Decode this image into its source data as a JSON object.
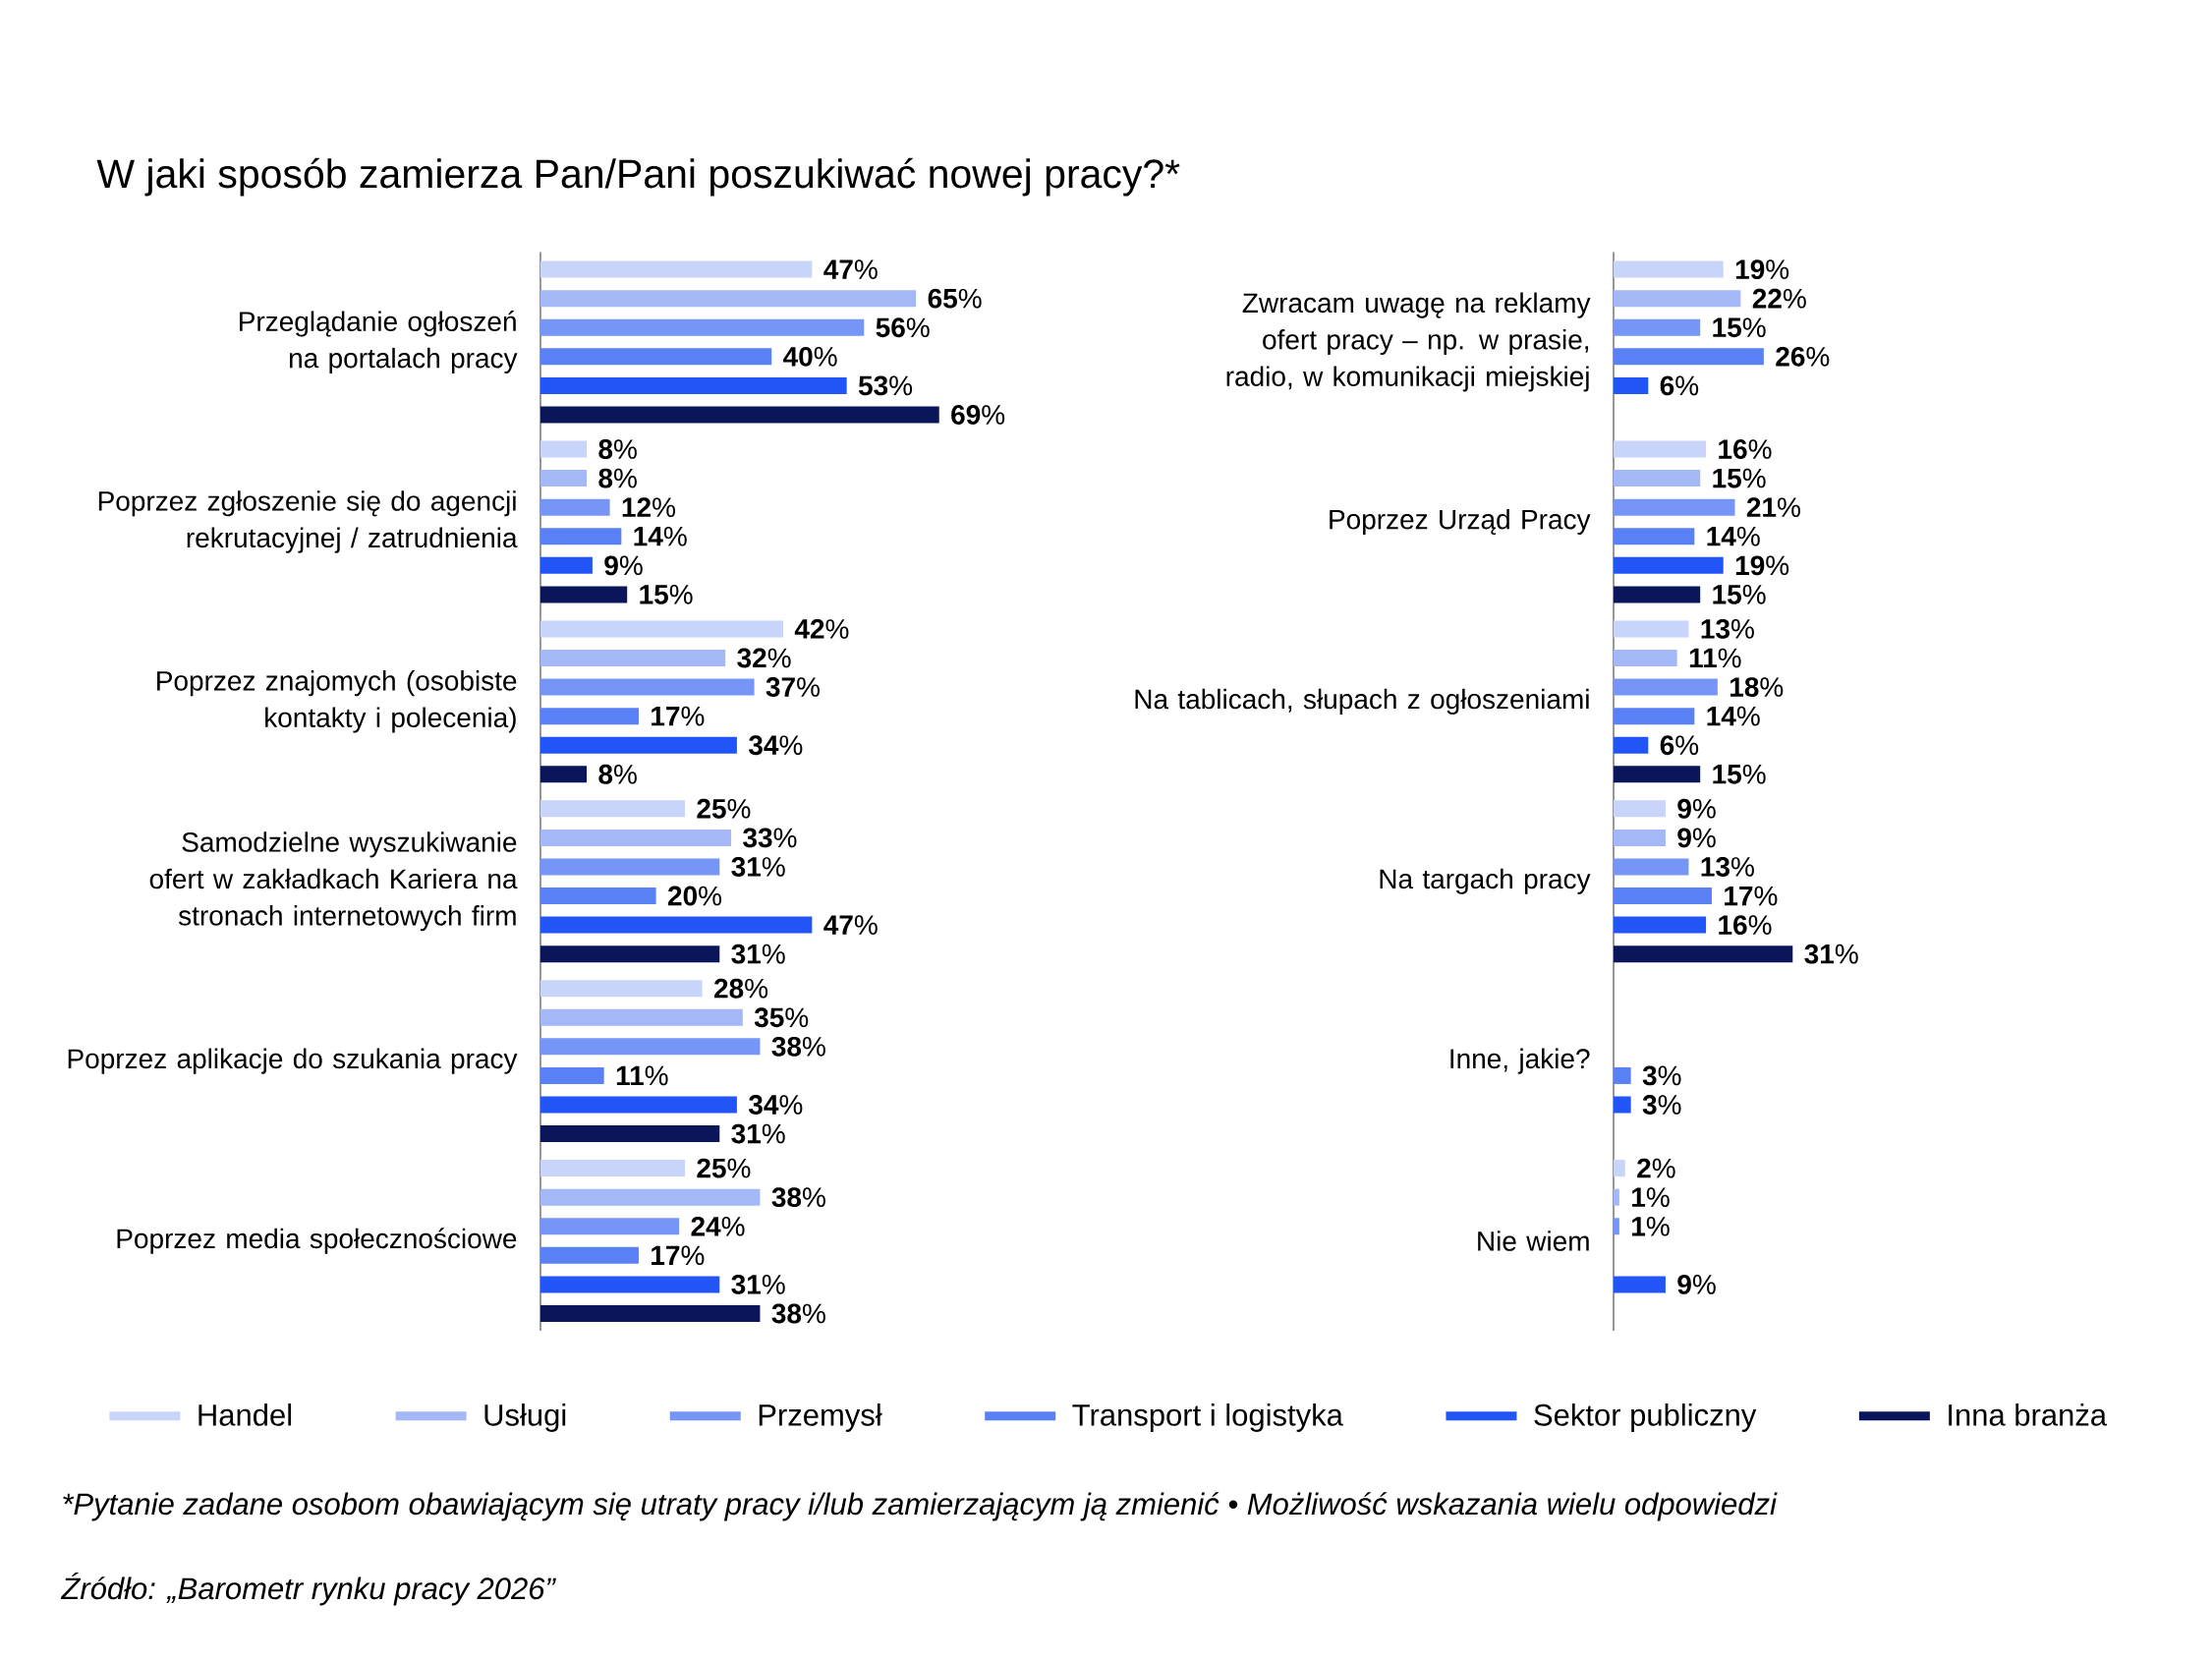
{
  "chart_data": [
    {
      "type": "bar",
      "orientation": "horizontal",
      "title": "W jaki sposób zamierza Pan/Pani poszukiwać nowej pracy?*",
      "categories": [
        "Przeglądanie ogłoszeń na portalach pracy",
        "Poprzez zgłoszenie się do agencji rekrutacyjnej / zatrudnienia",
        "Poprzez znajomych (osobiste kontakty i polecenia)",
        "Samodzielne wyszukiwanie ofert w zakładkach Kariera na stronach internetowych firm",
        "Poprzez aplikacje do szukania pracy",
        "Poprzez media społecznościowe"
      ],
      "series": [
        {
          "name": "Handel",
          "color": "#c8d4fa",
          "values": [
            47,
            8,
            42,
            25,
            28,
            25
          ],
          "value_labels": [
            "**47**%",
            "**8**%",
            "**42**%",
            "**25**%",
            "**28**%",
            "**25**%"
          ]
        },
        {
          "name": "Usługi",
          "color": "#a4b8f8",
          "values": [
            65,
            8,
            32,
            33,
            35,
            38
          ],
          "value_labels": [
            "**65**%",
            "**8**%",
            "**32**%",
            "**33**%",
            "**35**%",
            "**38**%"
          ]
        },
        {
          "name": "Przemysł",
          "color": "#7595f7",
          "values": [
            56,
            12,
            37,
            31,
            38,
            24
          ],
          "value_labels": [
            "**56**%",
            "**12**%",
            "**37**%",
            "**31**%",
            "**38**%",
            "**24**%"
          ]
        },
        {
          "name": "Transport i logistyka",
          "color": "#5a80f5",
          "values": [
            40,
            14,
            17,
            20,
            11,
            17
          ],
          "value_labels": [
            "**40**%",
            "**14**%",
            "**17**%",
            "**20**%",
            "**11**%",
            "**17**%"
          ]
        },
        {
          "name": "Sektor publiczny",
          "color": "#2255f7",
          "values": [
            53,
            9,
            34,
            47,
            34,
            31
          ],
          "value_labels": [
            "**53**%",
            "**9**%",
            "**34**%",
            "**47**%",
            "**34**%",
            "**31**%"
          ]
        },
        {
          "name": "Inna branża",
          "color": "#0a1659",
          "values": [
            69,
            15,
            8,
            31,
            31,
            38
          ],
          "value_labels": [
            "**69**%",
            "**15**%",
            "**8**%",
            "**31**%",
            "**31**%",
            "**38**%"
          ]
        }
      ],
      "tick_labels": "y",
      "legend": "bottom",
      "annotations": [
        "*Pytanie zadane osobom obawiającym się utraty pracy i/lub zamierzającym ją zmienić • Możliwość wskazania wielu odpowiedzi",
        "Źródło: „Barometr rynku pracy 2026”"
      ]
    },
    {
      "type": "bar",
      "orientation": "horizontal",
      "categories": [
        "Zwracam uwagę na reklamy ofert pracy – np. w prasie, radio, w komunikacji miejskiej",
        "Poprzez Urząd Pracy",
        "Na tablicach, słupach z ogłoszeniami",
        "Na targach pracy",
        "Inne, jakie?",
        "Nie wiem"
      ],
      "series": [
        {
          "color": "#c8d4fa",
          "values": [
            19,
            16,
            13,
            9,
            null,
            2
          ],
          "value_labels": [
            "**19**%",
            "**16**%",
            "**13**%",
            "**9**%",
            null,
            "**2**%"
          ]
        },
        {
          "color": "#a4b8f8",
          "values": [
            22,
            15,
            11,
            9,
            null,
            1
          ],
          "value_labels": [
            "**22**%",
            "**15**%",
            "**11**%",
            "**9**%",
            null,
            "**1**%"
          ]
        },
        {
          "color": "#7595f7",
          "values": [
            15,
            21,
            18,
            13,
            null,
            1
          ],
          "value_labels": [
            "**15**%",
            "**21**%",
            "**18**%",
            "**13**%",
            null,
            "**1**%"
          ]
        },
        {
          "color": "#5a80f5",
          "values": [
            26,
            14,
            14,
            17,
            3,
            null
          ],
          "value_labels": [
            "**26**%",
            "**14**%",
            "**14**%",
            "**17**%",
            "**3**%",
            null
          ]
        },
        {
          "color": "#2255f7",
          "values": [
            6,
            19,
            6,
            16,
            3,
            9
          ],
          "value_labels": [
            "**6**%",
            "**19**%",
            "**6**%",
            "**16**%",
            "**3**%",
            "**9**%"
          ]
        },
        {
          "color": "#0a1659",
          "values": [
            null,
            15,
            15,
            31,
            null,
            null
          ],
          "value_labels": [
            null,
            "**15**%",
            "**15**%",
            "**31**%",
            null,
            null
          ]
        }
      ],
      "tick_labels": "y"
    }
  ]
}
